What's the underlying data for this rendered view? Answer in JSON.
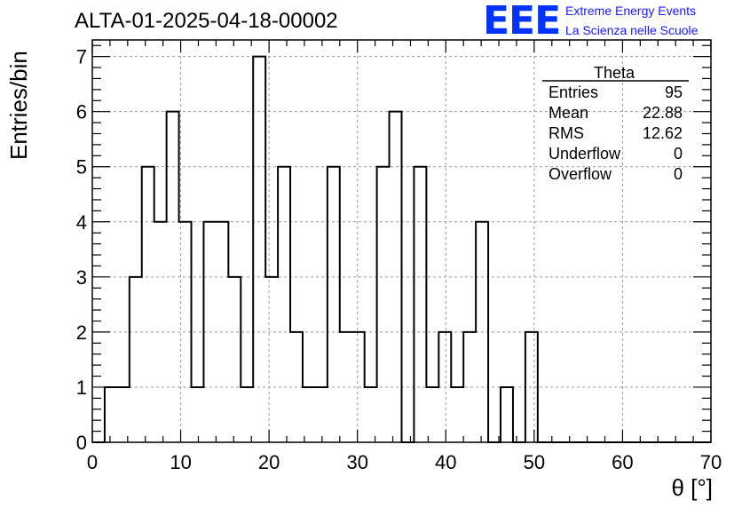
{
  "header": {
    "run_title": "ALTA-01-2025-04-18-00002",
    "logo": "EEE",
    "logo_line1": "Extreme Energy Events",
    "logo_line2": "La Scienza nelle Scuole"
  },
  "stats_box": {
    "title": "Theta",
    "rows": [
      {
        "label": "Entries",
        "value": "95"
      },
      {
        "label": "Mean",
        "value": "22.88"
      },
      {
        "label": "RMS",
        "value": "12.62"
      },
      {
        "label": "Underflow",
        "value": "0"
      },
      {
        "label": "Overflow",
        "value": "0"
      }
    ]
  },
  "chart_data": {
    "type": "bar",
    "style": "step-histogram",
    "xlabel": "θ [°]",
    "ylabel": "Entries/bin",
    "xlim": [
      0,
      70
    ],
    "ylim": [
      0,
      7.3
    ],
    "xticks": [
      0,
      10,
      20,
      30,
      40,
      50,
      60,
      70
    ],
    "yticks": [
      0,
      1,
      2,
      3,
      4,
      5,
      6,
      7
    ],
    "grid": true,
    "bin_width": 1.4,
    "bin_start": 0,
    "values": [
      0,
      1,
      1,
      3,
      5,
      4,
      6,
      4,
      1,
      4,
      4,
      3,
      1,
      7,
      3,
      5,
      2,
      1,
      1,
      5,
      2,
      2,
      1,
      5,
      6,
      0,
      5,
      1,
      2,
      1,
      2,
      4,
      0,
      1,
      0,
      2,
      0,
      0,
      0,
      0,
      0,
      0,
      0,
      0,
      0,
      0,
      0,
      0,
      0,
      0
    ]
  }
}
